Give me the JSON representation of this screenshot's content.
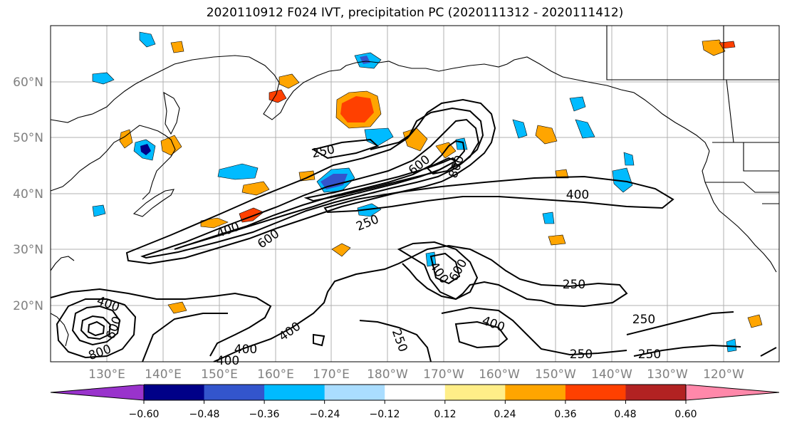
{
  "title": "2020110912 F024 IVT, precipitation PC (2020111312 - 2020111412)",
  "lon_labels": [
    "130°E",
    "140°E",
    "150°E",
    "160°E",
    "170°E",
    "180°W",
    "170°W",
    "160°W",
    "150°W",
    "140°W",
    "130°W",
    "120°W"
  ],
  "lat_labels": [
    "60°N",
    "50°N",
    "40°N",
    "30°N",
    "20°N"
  ],
  "colorbar": {
    "colors": [
      "#9933cc",
      "#000088",
      "#3355cc",
      "#00bbff",
      "#aaddff",
      "#ffffff",
      "#ffee88",
      "#ffa500",
      "#ff4000",
      "#b22222",
      "#ff88aa"
    ],
    "tick_labels": [
      "−0.60",
      "−0.48",
      "−0.36",
      "−0.24",
      "−0.12",
      "0.12",
      "0.24",
      "0.36",
      "0.48",
      "0.60"
    ]
  },
  "contour_labels": [
    {
      "text": "250"
    },
    {
      "text": "600"
    },
    {
      "text": "800"
    },
    {
      "text": "400"
    },
    {
      "text": "400"
    },
    {
      "text": "600"
    },
    {
      "text": "250"
    },
    {
      "text": "400"
    },
    {
      "text": "600"
    },
    {
      "text": "400"
    },
    {
      "text": "600"
    },
    {
      "text": "800"
    },
    {
      "text": "400"
    },
    {
      "text": "400"
    },
    {
      "text": "250"
    },
    {
      "text": "250"
    },
    {
      "text": "400"
    },
    {
      "text": "250"
    },
    {
      "text": "250"
    },
    {
      "text": "250"
    },
    {
      "text": "400"
    }
  ]
}
